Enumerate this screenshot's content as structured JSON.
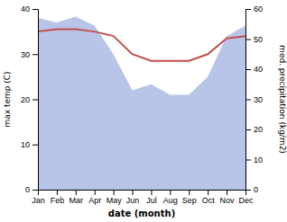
{
  "chart_data": {
    "type": "line",
    "categories": [
      "Jan",
      "Feb",
      "Mar",
      "Apr",
      "May",
      "Jun",
      "Jul",
      "Aug",
      "Sep",
      "Oct",
      "Nov",
      "Dec"
    ],
    "xlabel": "date (month)",
    "ylabel": "max temp (C)",
    "y2label": "med. precipitation (kg/m2)",
    "series": [
      {
        "type": "area",
        "axis": "y2",
        "color": "#b8c4e8",
        "values": [
          57.0,
          55.5,
          57.5,
          54.5,
          45.0,
          33.0,
          35.0,
          31.5,
          31.5,
          37.5,
          51.0,
          54.5
        ]
      },
      {
        "type": "line",
        "color": "#c0504d",
        "values": [
          35.0,
          35.5,
          35.5,
          35.0,
          34.0,
          30.0,
          28.5,
          28.5,
          28.5,
          30.0,
          33.5,
          34.0
        ]
      }
    ],
    "ylim": [
      0,
      40
    ],
    "yticks": [
      0,
      10,
      20,
      30,
      40
    ],
    "y2lim": [
      0,
      60
    ],
    "y2ticks": [
      0,
      10,
      20,
      30,
      40,
      50,
      60
    ],
    "grid": false
  }
}
